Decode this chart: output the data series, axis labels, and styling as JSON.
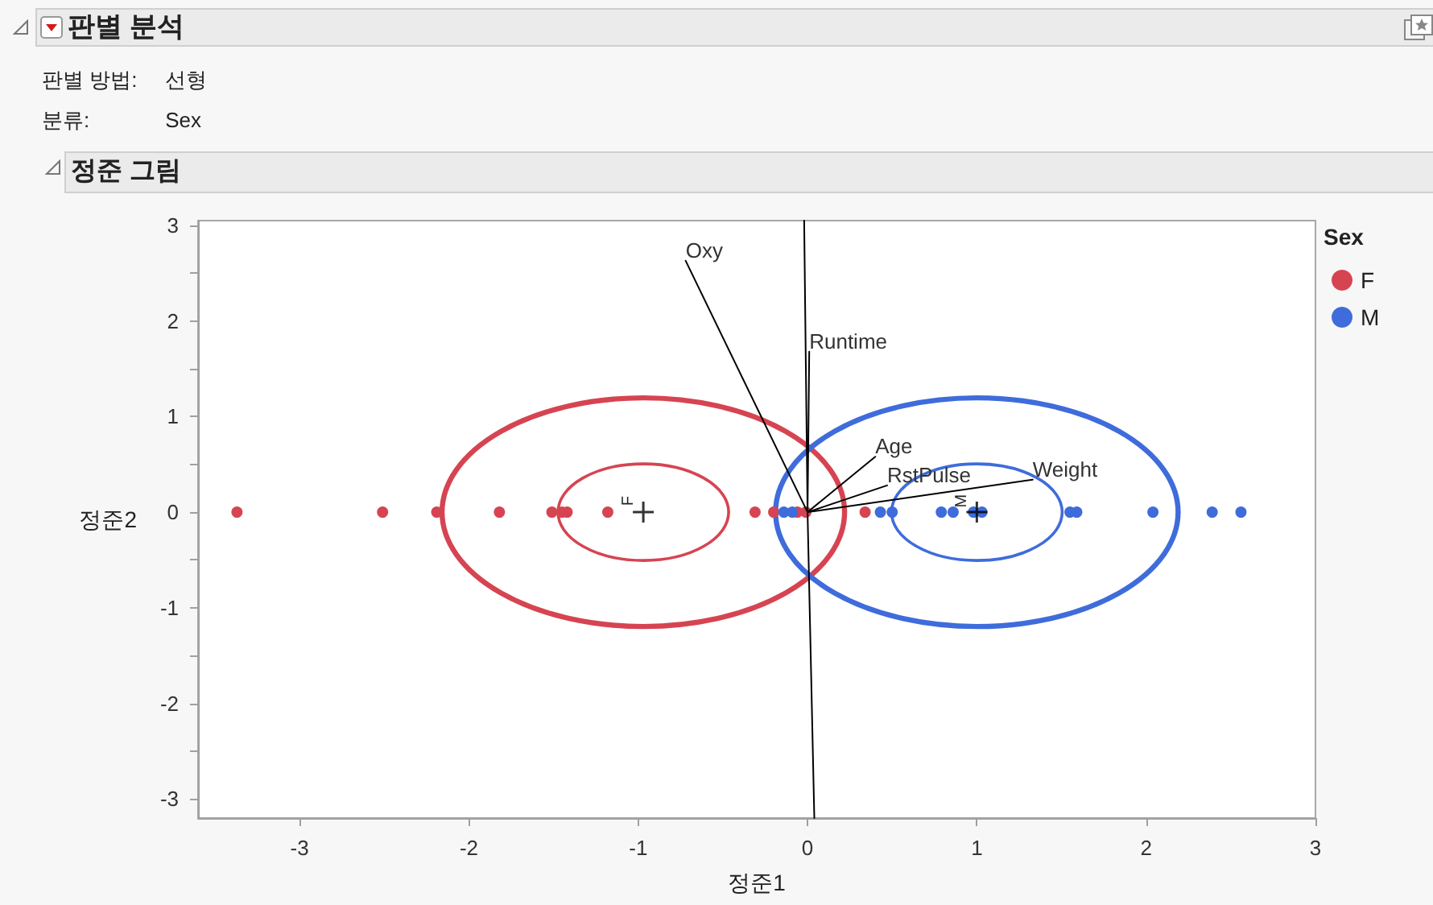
{
  "chart_data": {
    "type": "scatter",
    "title": "판별 분석",
    "subtitle": "정준 그림",
    "annotations": [
      "판별 방법: 선형",
      "분류: Sex",
      {
        "text": "F",
        "x": -0.97,
        "y": 0
      },
      {
        "text": "M",
        "x": 1.0,
        "y": 0
      }
    ],
    "xlabel": "정준1",
    "ylabel": "정준2",
    "legend_title": "Sex",
    "legend": "top right",
    "marker": "circle",
    "xlim": [
      -3.6,
      3
    ],
    "xticks": [
      -3,
      -2,
      -1,
      0,
      1,
      2,
      3
    ],
    "ylim": [
      -3.2,
      3.05
    ],
    "yticks": [
      -3,
      {
        "value": -2.5,
        "label": null
      },
      -2,
      {
        "value": -1.5,
        "label": null
      },
      -1,
      {
        "value": -0.5,
        "label": null
      },
      0,
      {
        "value": 0.5,
        "label": null
      },
      1,
      {
        "value": 1.5,
        "label": null
      },
      2,
      {
        "value": 2.5,
        "label": null
      },
      3
    ],
    "series": [
      {
        "name": "F",
        "color": "#d64452",
        "x": [
          -3.37,
          -2.51,
          -2.19,
          -1.82,
          -1.51,
          -1.45,
          -1.42,
          -1.18,
          -0.31,
          -0.2,
          -0.06,
          -0.01,
          0.34
        ],
        "values": [
          0,
          0,
          0,
          0,
          0,
          0,
          0,
          0,
          0,
          0,
          0,
          0,
          0
        ]
      },
      {
        "name": "M",
        "color": "#3f6cdb",
        "x": [
          -0.14,
          -0.09,
          0.43,
          0.5,
          0.79,
          0.86,
          0.98,
          1.03,
          1.55,
          1.59,
          2.04,
          2.39,
          2.56
        ],
        "values": [
          0,
          0,
          0,
          0,
          0,
          0,
          0,
          0,
          0,
          0,
          0,
          0,
          0
        ]
      },
      {
        "type": "line",
        "marker": "none",
        "color": "#000000",
        "name": "Oxy",
        "x": [
          0,
          -0.72
        ],
        "values": [
          0,
          2.63
        ]
      },
      {
        "type": "line",
        "marker": "none",
        "color": "#000000",
        "name": "Runtime",
        "x": [
          0,
          0.01
        ],
        "values": [
          0,
          1.68
        ]
      },
      {
        "type": "line",
        "marker": "none",
        "color": "#000000",
        "name": "Age",
        "x": [
          0,
          0.4
        ],
        "values": [
          0,
          0.58
        ]
      },
      {
        "type": "line",
        "marker": "none",
        "color": "#000000",
        "name": "RstPulse",
        "x": [
          0,
          0.47
        ],
        "values": [
          0,
          0.28
        ]
      },
      {
        "type": "line",
        "marker": "none",
        "color": "#000000",
        "name": "Weight",
        "x": [
          0,
          1.33
        ],
        "values": [
          0,
          0.34
        ]
      },
      {
        "type": "line",
        "marker": "none",
        "color": "#000000",
        "x": [
          0,
          -0.02
        ],
        "values": [
          0,
          3.05
        ]
      },
      {
        "type": "line",
        "marker": "none",
        "color": "#000000",
        "x": [
          0,
          0.04
        ],
        "values": [
          0,
          -3.2
        ]
      },
      {
        "type": "scatter",
        "marker": "cross",
        "color": "#000000",
        "x": [
          -0.97,
          1.0
        ],
        "values": [
          0,
          0
        ]
      }
    ]
  }
}
